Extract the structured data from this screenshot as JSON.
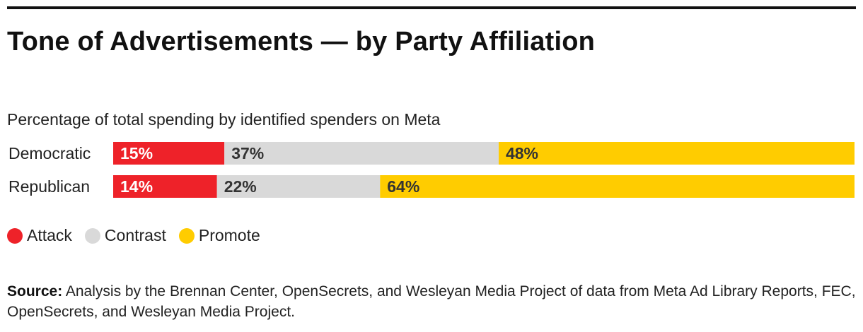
{
  "title": "Tone of Advertisements — by Party Affiliation",
  "subtitle": "Percentage of total spending by identified spenders on Meta",
  "chart_data": {
    "type": "bar",
    "orientation": "horizontal",
    "stacked": true,
    "title": "Tone of Advertisements — by Party Affiliation",
    "subtitle": "Percentage of total spending by identified spenders on Meta",
    "categories": [
      "Democratic",
      "Republican"
    ],
    "series": [
      {
        "name": "Attack",
        "values": [
          15,
          14
        ],
        "labels": [
          "15%",
          "14%"
        ],
        "color": "#ee2229",
        "label_color": "#ffffff"
      },
      {
        "name": "Contrast",
        "values": [
          37,
          22
        ],
        "labels": [
          "37%",
          "22%"
        ],
        "color": "#d9d9d9",
        "label_color": "#333333"
      },
      {
        "name": "Promote",
        "values": [
          48,
          64
        ],
        "labels": [
          "48%",
          "64%"
        ],
        "color": "#ffcc00",
        "label_color": "#333333"
      }
    ],
    "xlim": [
      0,
      100
    ],
    "unit": "%",
    "grid": false,
    "legend_position": "bottom-left"
  },
  "legend": [
    {
      "label": "Attack",
      "color": "#ee2229"
    },
    {
      "label": "Contrast",
      "color": "#d9d9d9"
    },
    {
      "label": "Promote",
      "color": "#ffcc00"
    }
  ],
  "source": {
    "label": "Source:",
    "text": "Analysis by the Brennan Center, OpenSecrets, and Wesleyan Media Project of data from Meta Ad Library Reports, FEC, OpenSecrets, and Wesleyan Media Project."
  }
}
